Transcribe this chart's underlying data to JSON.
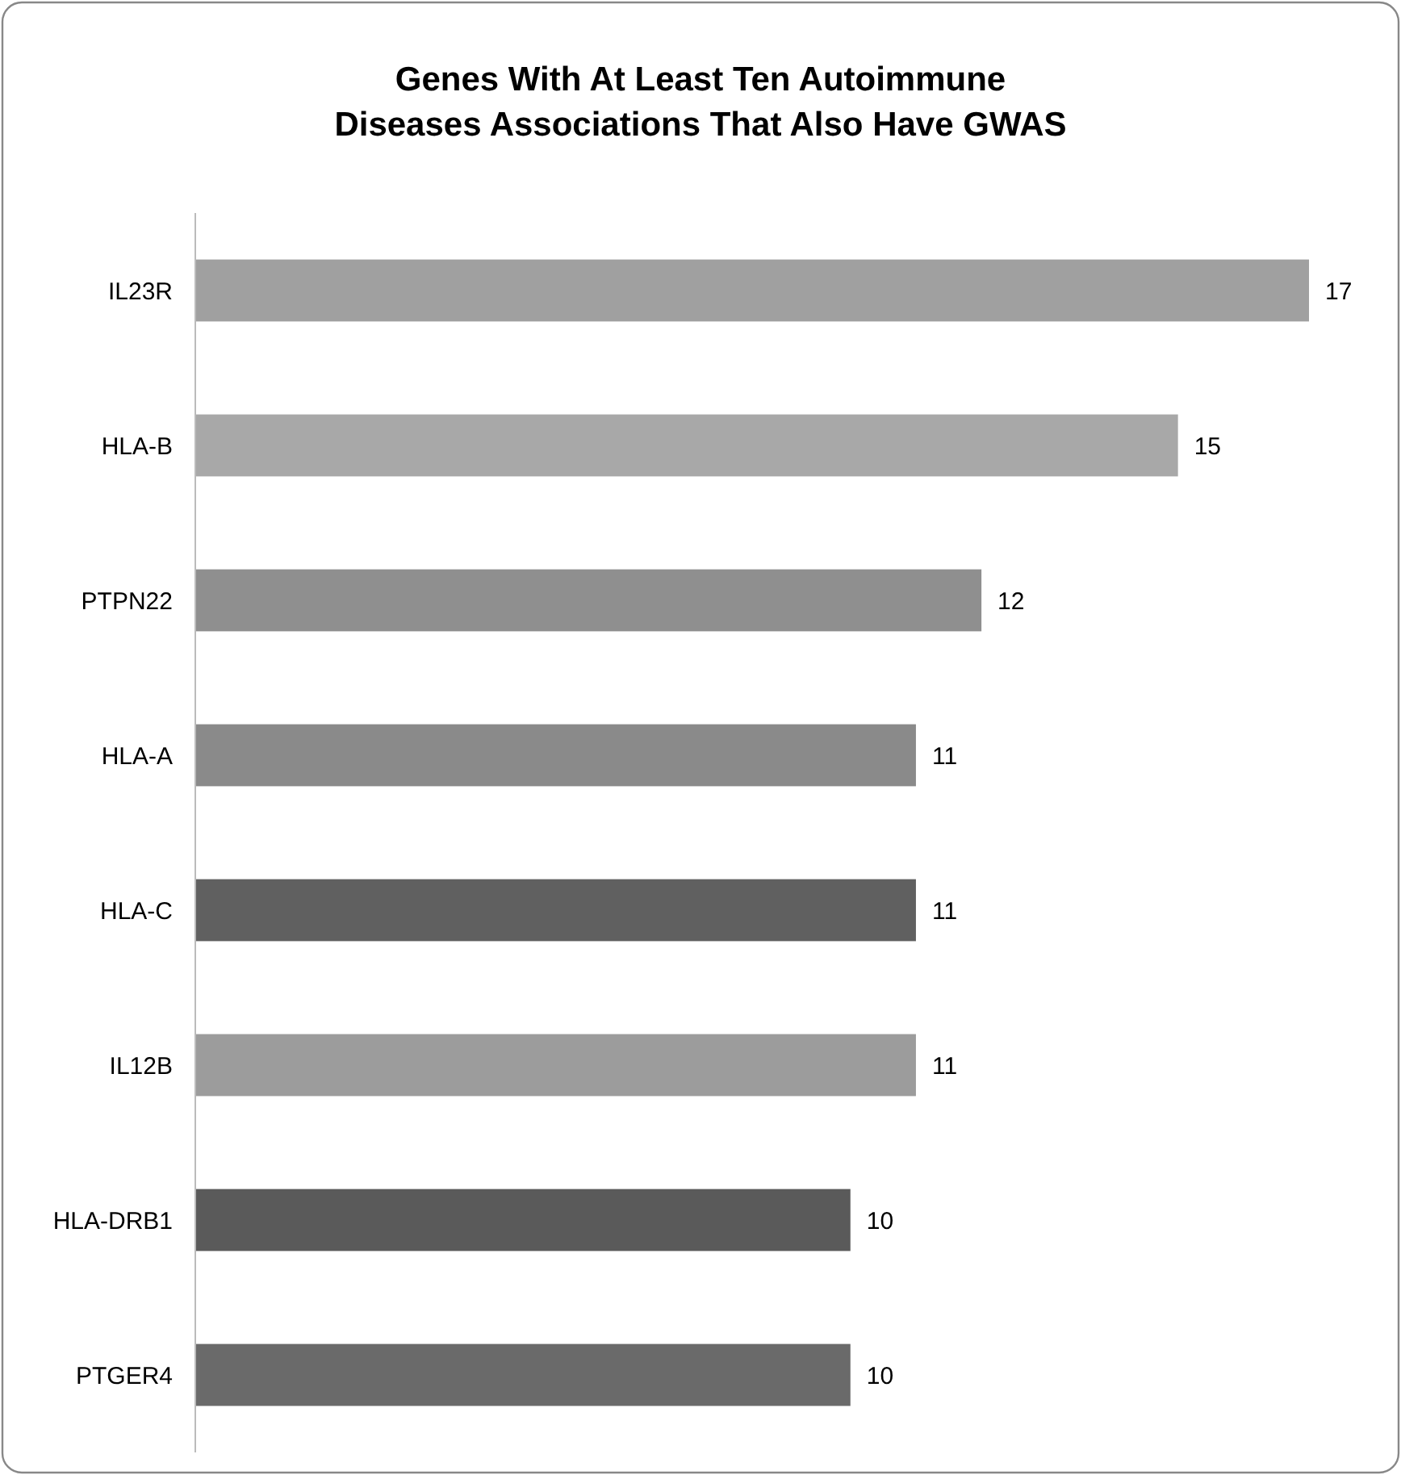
{
  "chart_data": {
    "type": "bar",
    "title": "Genes With At Least Ten Autoimmune\nDiseases Associations That Also Have GWAS",
    "orientation": "horizontal",
    "categories": [
      "IL23R",
      "HLA-B",
      "PTPN22",
      "HLA-A",
      "HLA-C",
      "IL12B",
      "HLA-DRB1",
      "PTGER4"
    ],
    "values": [
      17,
      15,
      12,
      11,
      11,
      11,
      10,
      10
    ],
    "colors": [
      "#a0a0a0",
      "#a8a8a8",
      "#8f8f8f",
      "#8a8a8a",
      "#606060",
      "#9c9c9c",
      "#5a5a5a",
      "#6a6a6a"
    ],
    "data_labels": true
  }
}
